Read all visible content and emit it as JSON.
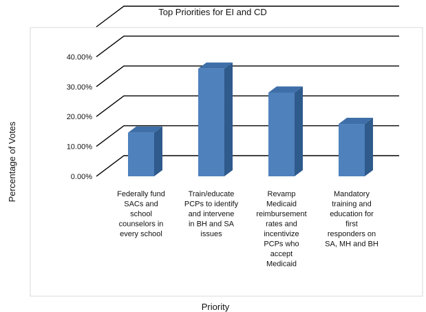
{
  "chart_data": {
    "type": "bar",
    "title": "Top Priorities for EI and CD",
    "xlabel": "Priority",
    "ylabel": "Percentage of Votes",
    "ylim": [
      0,
      0.5
    ],
    "yticks": [
      "0.00%",
      "10.00%",
      "20.00%",
      "30.00%",
      "40.00%"
    ],
    "grid": true,
    "three_d": true,
    "categories": [
      "Federally fund SACs and school counselors in every school",
      "Train/educate PCPs to identify and intervene in BH and SA issues",
      "Revamp Medicaid reimbursement rates and incentivize PCPs who accept Medicaid",
      "Mandatory training and education for first responders on SA, MH and BH"
    ],
    "category_lines": [
      [
        "Federally fund",
        "SACs and",
        "school",
        "counselors in",
        "every school"
      ],
      [
        "Train/educate",
        "PCPs to identify",
        "and intervene",
        "in BH and SA",
        "issues"
      ],
      [
        "Revamp",
        "Medicaid",
        "reimbursement",
        "rates and",
        "incentivize",
        "PCPs who",
        "accept",
        "Medicaid"
      ],
      [
        "Mandatory",
        "training and",
        "education for",
        "first",
        "responders on",
        "SA, MH and BH"
      ]
    ],
    "values": [
      0.146,
      0.36,
      0.28,
      0.175
    ],
    "colors": {
      "bar_front": "#4F81BD",
      "bar_side": "#2E5A8C",
      "bar_top": "#3F6FA8",
      "grid": "#000000",
      "frame": "#D9D9D9"
    }
  }
}
